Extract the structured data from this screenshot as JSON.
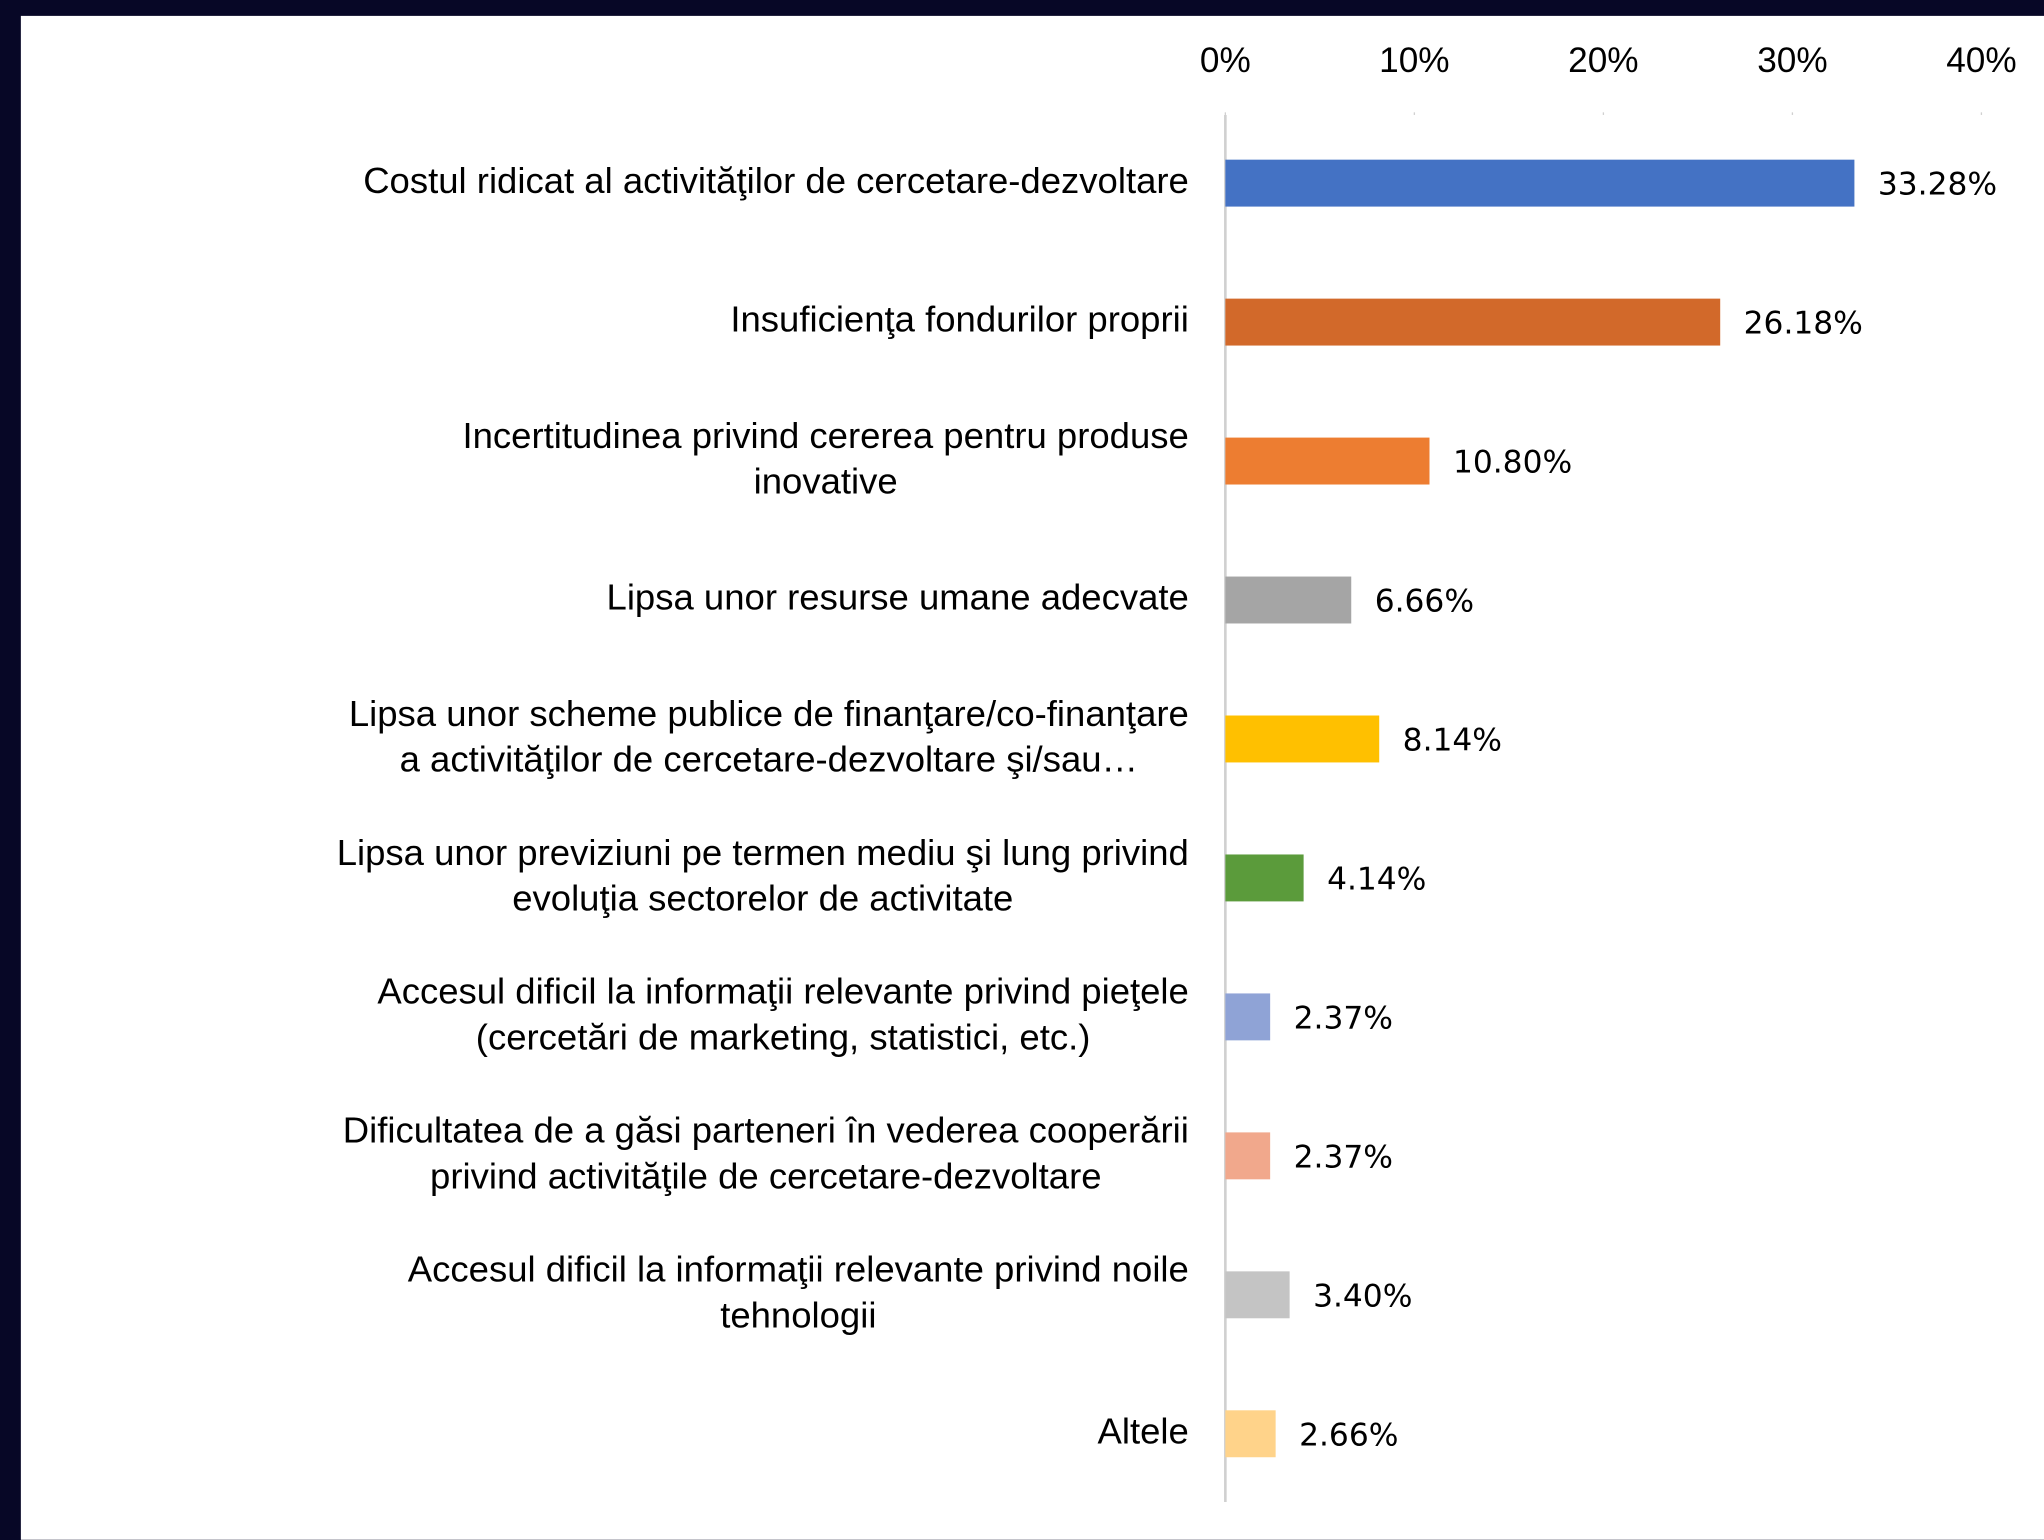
{
  "chart_data": {
    "type": "bar",
    "orientation": "horizontal",
    "categories": [
      [
        "Costul ridicat al activităţilor de cercetare-dezvoltare"
      ],
      [
        "Insuficienţa fondurilor proprii"
      ],
      [
        "Incertitudinea privind cererea pentru produse",
        "inovative"
      ],
      [
        "Lipsa unor resurse umane adecvate"
      ],
      [
        "Lipsa unor scheme publice de finanţare/co-finanţare",
        "a activităţilor de cercetare-dezvoltare şi/sau…"
      ],
      [
        "Lipsa unor previziuni pe termen mediu şi lung privind",
        "evoluţia sectorelor de activitate"
      ],
      [
        "Accesul dificil la informaţii relevante privind pieţele",
        "(cercetări de marketing, statistici, etc.)"
      ],
      [
        "Dificultatea de a găsi parteneri în vederea cooperării",
        "privind activităţile de cercetare-dezvoltare"
      ],
      [
        "Accesul dificil la informaţii relevante privind noile",
        "tehnologii"
      ],
      [
        "Altele"
      ]
    ],
    "values": [
      33.28,
      26.18,
      10.8,
      6.66,
      8.14,
      4.14,
      2.37,
      2.37,
      3.4,
      2.66
    ],
    "value_labels": [
      "33.28%",
      "26.18%",
      "10.80%",
      "6.66%",
      "8.14%",
      "4.14%",
      "2.37%",
      "2.37%",
      "3.40%",
      "2.66%"
    ],
    "colors": [
      "#4472c4",
      "#d2692a",
      "#ed7d31",
      "#a5a5a5",
      "#ffc000",
      "#5b9b3b",
      "#8fa3d6",
      "#f1a88c",
      "#c4c4c4",
      "#ffd38a"
    ],
    "xlim": [
      0,
      40
    ],
    "xticks": [
      {
        "value": 0,
        "label": "0%"
      },
      {
        "value": 10,
        "label": "10%"
      },
      {
        "value": 20,
        "label": "20%"
      },
      {
        "value": 30,
        "label": "30%"
      },
      {
        "value": 40,
        "label": "40%"
      }
    ],
    "grid": false
  }
}
